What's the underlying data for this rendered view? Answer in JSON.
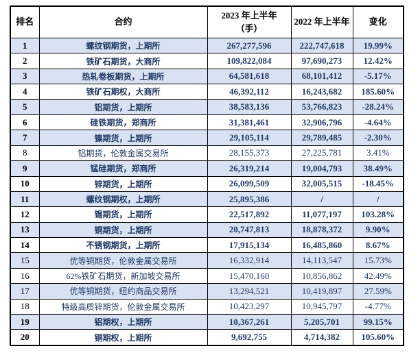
{
  "table": {
    "headers": {
      "rank": "排名",
      "contract": "合约",
      "h2023_line1": "2023 年上半年",
      "h2023_line2": "（手）",
      "h2022": "2022 年上半年",
      "change": "变化"
    },
    "rows": [
      {
        "rank": "1",
        "contract": "螺纹钢期货，上期所",
        "v2023": "267,277,596",
        "v2022": "222,747,618",
        "change": "19.99%",
        "emphasis": true
      },
      {
        "rank": "2",
        "contract": "铁矿石期货，大商所",
        "v2023": "109,822,084",
        "v2022": "97,690,273",
        "change": "12.42%",
        "emphasis": true
      },
      {
        "rank": "3",
        "contract": "热轧卷板期货，上期所",
        "v2023": "64,581,618",
        "v2022": "68,101,412",
        "change": "-5.17%",
        "emphasis": true
      },
      {
        "rank": "4",
        "contract": "铁矿石期权，大商所",
        "v2023": "46,392,112",
        "v2022": "16,243,682",
        "change": "185.60%",
        "emphasis": true
      },
      {
        "rank": "5",
        "contract": "铝期货，上期所",
        "v2023": "38,583,136",
        "v2022": "53,766,823",
        "change": "-28.24%",
        "emphasis": true
      },
      {
        "rank": "6",
        "contract": "硅铁期货，郑商所",
        "v2023": "31,381,461",
        "v2022": "32,906,796",
        "change": "-4.64%",
        "emphasis": true
      },
      {
        "rank": "7",
        "contract": "镍期货，上期所",
        "v2023": "29,105,114",
        "v2022": "29,789,485",
        "change": "-2.30%",
        "emphasis": true
      },
      {
        "rank": "8",
        "contract": "铝期货，伦敦金属交易所",
        "v2023": "28,155,373",
        "v2022": "27,225,781",
        "change": "3.41%",
        "emphasis": false
      },
      {
        "rank": "9",
        "contract": "锰硅期货，郑商所",
        "v2023": "26,319,214",
        "v2022": "19,004,793",
        "change": "38.49%",
        "emphasis": true
      },
      {
        "rank": "10",
        "contract": "锌期货，上期所",
        "v2023": "26,099,509",
        "v2022": "32,005,515",
        "change": "-18.45%",
        "emphasis": true
      },
      {
        "rank": "11",
        "contract": "螺纹钢期权，上期所",
        "v2023": "25,895,386",
        "v2022": "/",
        "change": "/",
        "emphasis": true
      },
      {
        "rank": "12",
        "contract": "锡期货，上期所",
        "v2023": "22,517,892",
        "v2022": "11,077,197",
        "change": "103.28%",
        "emphasis": true
      },
      {
        "rank": "13",
        "contract": "铜期货，上期所",
        "v2023": "20,747,813",
        "v2022": "18,878,372",
        "change": "9.90%",
        "emphasis": true
      },
      {
        "rank": "14",
        "contract": "不锈钢期货，上期所",
        "v2023": "17,915,134",
        "v2022": "16,485,860",
        "change": "8.67%",
        "emphasis": true
      },
      {
        "rank": "15",
        "contract": "优等铜期货，伦敦金属交易所",
        "v2023": "16,332,914",
        "v2022": "14,113,547",
        "change": "15.73%",
        "emphasis": false
      },
      {
        "rank": "16",
        "contract": "62%铁矿石期货，新加坡交易所",
        "v2023": "15,470,160",
        "v2022": "10,856,862",
        "change": "42.49%",
        "emphasis": false
      },
      {
        "rank": "17",
        "contract": "优等铜期货，纽约商品交易所",
        "v2023": "13,294,521",
        "v2022": "10,419,897",
        "change": "27.59%",
        "emphasis": false
      },
      {
        "rank": "18",
        "contract": "特级高质锌期货，伦敦金属交易所",
        "v2023": "10,423,297",
        "v2022": "10,945,797",
        "change": "-4.77%",
        "emphasis": false
      },
      {
        "rank": "19",
        "contract": "铝期权，上期所",
        "v2023": "10,367,261",
        "v2022": "5,205,701",
        "change": "99.15%",
        "emphasis": true
      },
      {
        "rank": "20",
        "contract": "铜期权，上期所",
        "v2023": "9,692,755",
        "v2022": "4,714,382",
        "change": "105.60%",
        "emphasis": true
      }
    ]
  },
  "colors": {
    "alt_row_bg": "#D9E2F3",
    "text_navy": "#1F3864",
    "border": "#000000"
  }
}
